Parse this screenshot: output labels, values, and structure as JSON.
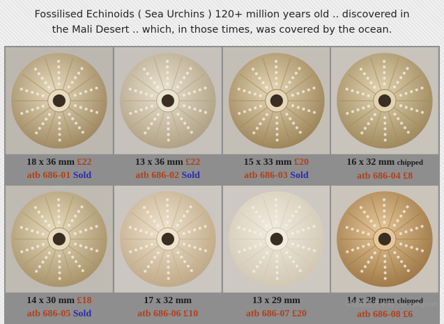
{
  "header": {
    "title_lines": [
      "Fossilised Echinoids ( Sea Urchins ) 120+ million years old .. discovered in",
      "the Mali Desert .. which, in those times, was covered by the ocean."
    ]
  },
  "items": [
    {
      "line1": [
        {
          "text": "18 x 36 mm",
          "kind": "size"
        },
        {
          "text": "£22",
          "kind": "price"
        }
      ],
      "line2": [
        {
          "text": "atb 686-01",
          "kind": "code"
        },
        {
          "text": "Sold",
          "kind": "sold"
        }
      ]
    },
    {
      "line1": [
        {
          "text": "13 x 36 mm",
          "kind": "size"
        },
        {
          "text": "£22",
          "kind": "price"
        }
      ],
      "line2": [
        {
          "text": "atb 686-02",
          "kind": "code"
        },
        {
          "text": "Sold",
          "kind": "sold"
        }
      ]
    },
    {
      "line1": [
        {
          "text": "15 x 33 mm",
          "kind": "size"
        },
        {
          "text": "£20",
          "kind": "price"
        }
      ],
      "line2": [
        {
          "text": "atb 686-03",
          "kind": "code"
        },
        {
          "text": "Sold",
          "kind": "sold"
        }
      ]
    },
    {
      "line1": [
        {
          "text": "16 x 32 mm",
          "kind": "size"
        },
        {
          "text": "chipped",
          "kind": "note"
        }
      ],
      "line2": [
        {
          "text": "atb 686-04",
          "kind": "code"
        },
        {
          "text": "£8",
          "kind": "price"
        }
      ]
    },
    {
      "line1": [
        {
          "text": "14 x 30 mm",
          "kind": "size"
        },
        {
          "text": "£18",
          "kind": "price"
        }
      ],
      "line2": [
        {
          "text": "atb 686-05",
          "kind": "code"
        },
        {
          "text": "Sold",
          "kind": "sold"
        }
      ]
    },
    {
      "line1": [
        {
          "text": "17 x 32 mm",
          "kind": "size"
        }
      ],
      "line2": [
        {
          "text": "atb 686-06",
          "kind": "code"
        },
        {
          "text": "£10",
          "kind": "price"
        }
      ]
    },
    {
      "line1": [
        {
          "text": "13 x 29 mm",
          "kind": "size"
        }
      ],
      "line2": [
        {
          "text": "atb 686-07",
          "kind": "code"
        },
        {
          "text": "£20",
          "kind": "price"
        }
      ]
    },
    {
      "line1": [
        {
          "text": "14 x 28 mm",
          "kind": "size"
        },
        {
          "text": "chipped",
          "kind": "note"
        }
      ],
      "line2": [
        {
          "text": "atb 686-08",
          "kind": "code"
        },
        {
          "text": "£6",
          "kind": "price"
        }
      ]
    }
  ],
  "watermark": "中国藏品艺术网 · veryhg.net"
}
